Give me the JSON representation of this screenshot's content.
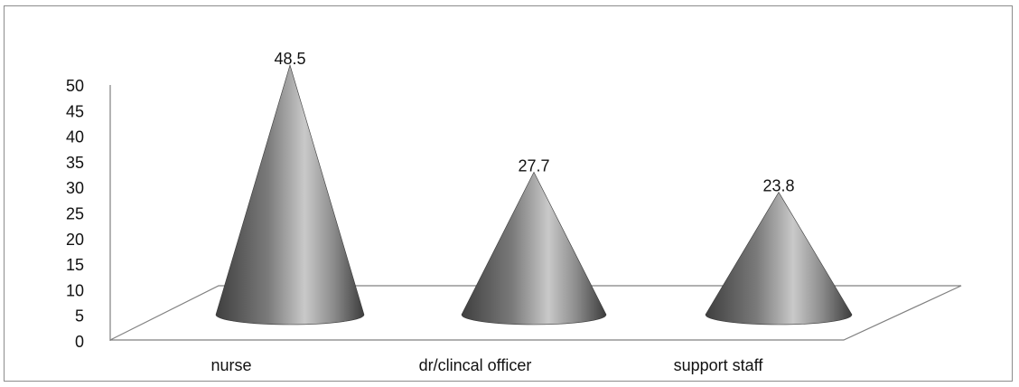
{
  "chart_data": {
    "type": "bar",
    "bar_shape": "cone",
    "style": "3d",
    "categories": [
      "nurse",
      "dr/clincal officer",
      "support staff"
    ],
    "values": [
      48.5,
      27.7,
      23.8
    ],
    "data_labels": [
      "48.5",
      "27.7",
      "23.8"
    ],
    "ylim": [
      0,
      50
    ],
    "yticks": [
      "0",
      "5",
      "10",
      "15",
      "20",
      "25",
      "30",
      "35",
      "40",
      "45",
      "50"
    ],
    "grid": false,
    "legend": "none",
    "colors": {
      "cone_dark": "#4a4a4a",
      "cone_light": "#c8c8c8",
      "axis": "#808080"
    }
  }
}
